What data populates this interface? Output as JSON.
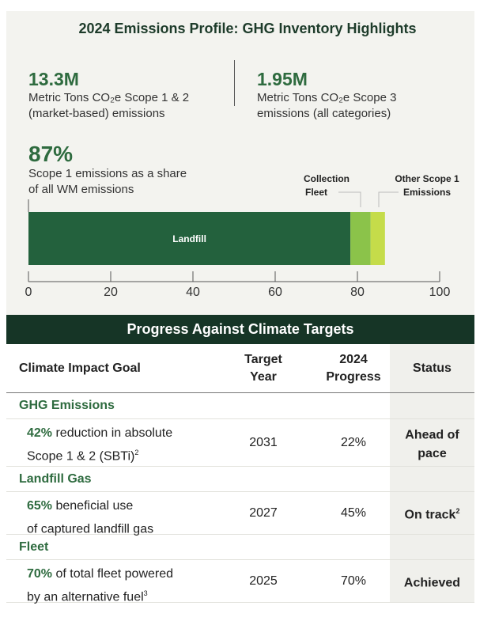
{
  "header": {
    "title": "2024 Emissions Profile: GHG Inventory Highlights"
  },
  "stats": [
    {
      "value": "13.3M",
      "line1": "Metric Tons CO₂e Scope 1 & 2",
      "line2": "(market-based) emissions"
    },
    {
      "value": "1.95M",
      "line1": "Metric Tons CO₂e Scope 3",
      "line2": "emissions (all categories)"
    },
    {
      "value": "87%",
      "line1": "Scope 1 emissions as a share",
      "line2": "of all WM emissions"
    }
  ],
  "chart_data": {
    "type": "bar",
    "orientation": "horizontal",
    "stacked": true,
    "series": [
      {
        "name": "Landfill",
        "value": 78.3,
        "color": "#23613d"
      },
      {
        "name": "Collection Fleet",
        "value": 4.9,
        "color": "#8bc34a"
      },
      {
        "name": "Other Scope 1 Emissions",
        "value": 3.5,
        "color": "#c5dc4a"
      }
    ],
    "labels": {
      "collection_l1": "Collection",
      "collection_l2": "Fleet",
      "other_l1": "Other Scope 1",
      "other_l2": "Emissions"
    },
    "xlim": [
      0,
      100
    ],
    "xticks": [
      "0",
      "20",
      "40",
      "60",
      "80",
      "100"
    ]
  },
  "table": {
    "title": "Progress Against Climate Targets",
    "headers": {
      "goal": "Climate Impact Goal",
      "target_l1": "Target",
      "target_l2": "Year",
      "progress_l1": "2024",
      "progress_l2": "Progress",
      "status": "Status"
    },
    "groups": [
      {
        "category": "GHG Emissions",
        "highlight": "42%",
        "text1": " reduction in absolute",
        "text2": "Scope 1 & 2 (SBTi)",
        "fn": "2",
        "target": "2031",
        "progress": "22%",
        "status1": "Ahead of",
        "status2": "pace",
        "status_fn": ""
      },
      {
        "category": "Landfill Gas",
        "highlight": "65%",
        "text1": " beneficial use",
        "text2": "of captured landfill gas",
        "fn": "",
        "target": "2027",
        "progress": "45%",
        "status1": "On track",
        "status2": "",
        "status_fn": "2"
      },
      {
        "category": "Fleet",
        "highlight": "70%",
        "text1": " of total fleet powered",
        "text2": "by an alternative fuel",
        "fn": "3",
        "target": "2025",
        "progress": "70%",
        "status1": "Achieved",
        "status2": "",
        "status_fn": ""
      }
    ]
  }
}
